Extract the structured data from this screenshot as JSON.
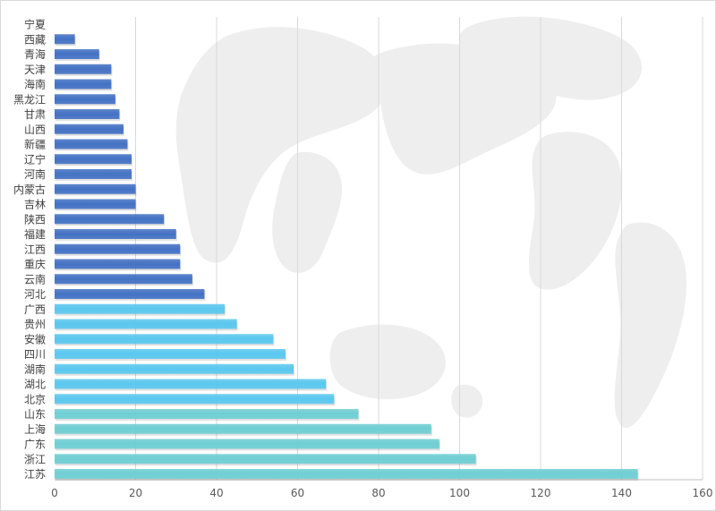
{
  "chart_data": {
    "type": "bar",
    "orientation": "horizontal",
    "title": "",
    "xlabel": "",
    "ylabel": "",
    "xlim": [
      0,
      160
    ],
    "x_ticks": [
      0,
      20,
      40,
      60,
      80,
      100,
      120,
      140,
      160
    ],
    "grid": "vertical",
    "legend": "none",
    "categories": [
      "宁夏",
      "西藏",
      "青海",
      "天津",
      "海南",
      "黑龙江",
      "甘肃",
      "山西",
      "新疆",
      "辽宁",
      "河南",
      "内蒙古",
      "吉林",
      "陕西",
      "福建",
      "江西",
      "重庆",
      "云南",
      "河北",
      "广西",
      "贵州",
      "安徽",
      "四川",
      "湖南",
      "湖北",
      "北京",
      "山东",
      "上海",
      "广东",
      "浙江",
      "江苏"
    ],
    "values": [
      0,
      5,
      11,
      14,
      14,
      15,
      16,
      17,
      18,
      19,
      19,
      20,
      20,
      27,
      30,
      31,
      31,
      34,
      37,
      42,
      45,
      54,
      57,
      59,
      67,
      69,
      75,
      93,
      95,
      104,
      144
    ],
    "colors": {
      "group_low": "#4472c4",
      "group_mid": "#5bc8ef",
      "group_high": "#6fcfd3",
      "grid": "#d9d9d9",
      "axis": "#bfbfbf",
      "background_map": "#eeeeee"
    }
  }
}
